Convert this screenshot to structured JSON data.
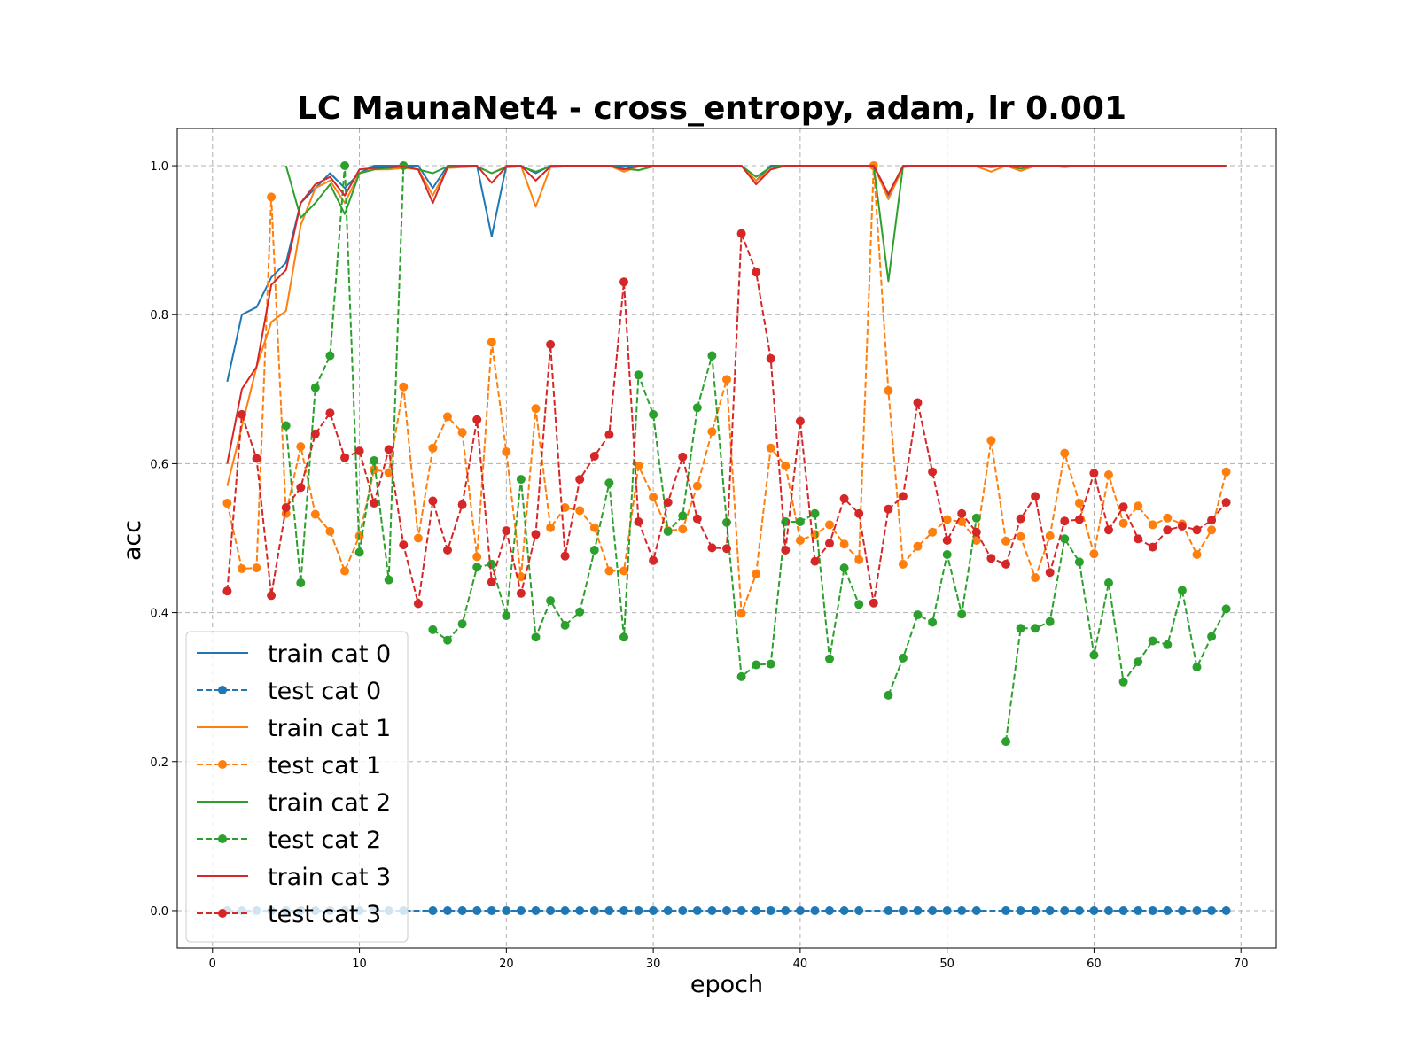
{
  "chart_data": {
    "type": "line",
    "title": "LC MaunaNet4 - cross_entropy, adam, lr 0.001",
    "xlabel": "epoch",
    "ylabel": "acc",
    "xlim": [
      -2.4,
      72.4
    ],
    "ylim": [
      -0.05,
      1.05
    ],
    "xticks": [
      0,
      10,
      20,
      30,
      40,
      50,
      60,
      70
    ],
    "yticks": [
      0.0,
      0.2,
      0.4,
      0.6,
      0.8,
      1.0
    ],
    "ytick_labels": [
      "0.0",
      "0.2",
      "0.4",
      "0.6",
      "0.8",
      "1.0"
    ],
    "grid": true,
    "legend_position": "lower-left",
    "series": [
      {
        "name": "train cat 0",
        "color": "#1f77b4",
        "style": "solid",
        "marker": false,
        "x": [
          1,
          2,
          3,
          4,
          5,
          6,
          7,
          8,
          9,
          10,
          11,
          12,
          13,
          14,
          15,
          16,
          17,
          18,
          19,
          20,
          21,
          22,
          23,
          24,
          25,
          26,
          27,
          28,
          29,
          30,
          31,
          32,
          33,
          34,
          35,
          36,
          37,
          38,
          39,
          40,
          41,
          42,
          43,
          44,
          45,
          46,
          47,
          48,
          49,
          50,
          51,
          52,
          53,
          54,
          55,
          56,
          57,
          58,
          59,
          60,
          61,
          62,
          63,
          64,
          65,
          66,
          67,
          68,
          69
        ],
        "values": [
          0.71,
          0.8,
          0.81,
          0.85,
          0.87,
          0.95,
          0.97,
          0.99,
          0.97,
          0.99,
          1.0,
          1.0,
          1.0,
          1.0,
          0.97,
          1.0,
          1.0,
          1.0,
          0.905,
          1.0,
          1.0,
          0.99,
          1.0,
          1.0,
          1.0,
          1.0,
          1.0,
          1.0,
          1.0,
          1.0,
          1.0,
          1.0,
          1.0,
          1.0,
          1.0,
          1.0,
          0.98,
          1.0,
          1.0,
          1.0,
          1.0,
          1.0,
          1.0,
          1.0,
          1.0,
          0.96,
          1.0,
          1.0,
          1.0,
          1.0,
          1.0,
          1.0,
          1.0,
          1.0,
          1.0,
          1.0,
          1.0,
          1.0,
          1.0,
          1.0,
          1.0,
          1.0,
          1.0,
          1.0,
          1.0,
          1.0,
          1.0,
          1.0,
          1.0
        ]
      },
      {
        "name": "test cat 0",
        "color": "#1f77b4",
        "style": "dashed",
        "marker": true,
        "x": [
          1,
          2,
          3,
          4,
          5,
          6,
          7,
          8,
          9,
          10,
          11,
          12,
          13,
          15,
          16,
          17,
          18,
          19,
          20,
          21,
          22,
          23,
          24,
          25,
          26,
          27,
          28,
          29,
          30,
          31,
          32,
          33,
          34,
          35,
          36,
          37,
          38,
          39,
          40,
          41,
          42,
          43,
          44,
          46,
          47,
          48,
          49,
          50,
          51,
          52,
          54,
          55,
          56,
          57,
          58,
          59,
          60,
          61,
          62,
          63,
          64,
          65,
          66,
          67,
          68,
          69
        ],
        "values": [
          0.0,
          0.0,
          0.0,
          0.0,
          0.0,
          0.0,
          0.0,
          0.0,
          0.0,
          0.0,
          0.0,
          0.0,
          0.0,
          0.0,
          0.0,
          0.0,
          0.0,
          0.0,
          0.0,
          0.0,
          0.0,
          0.0,
          0.0,
          0.0,
          0.0,
          0.0,
          0.0,
          0.0,
          0.0,
          0.0,
          0.0,
          0.0,
          0.0,
          0.0,
          0.0,
          0.0,
          0.0,
          0.0,
          0.0,
          0.0,
          0.0,
          0.0,
          0.0,
          0.0,
          0.0,
          0.0,
          0.0,
          0.0,
          0.0,
          0.0,
          0.0,
          0.0,
          0.0,
          0.0,
          0.0,
          0.0,
          0.0,
          0.0,
          0.0,
          0.0,
          0.0,
          0.0,
          0.0,
          0.0,
          0.0,
          0.0
        ]
      },
      {
        "name": "train cat 1",
        "color": "#ff7f0e",
        "style": "solid",
        "marker": false,
        "x": [
          1,
          2,
          3,
          4,
          5,
          6,
          7,
          8,
          9,
          10,
          11,
          12,
          13,
          14,
          15,
          16,
          17,
          18,
          19,
          20,
          21,
          22,
          23,
          24,
          25,
          26,
          27,
          28,
          29,
          30,
          31,
          32,
          33,
          34,
          35,
          36,
          37,
          38,
          39,
          40,
          41,
          42,
          43,
          44,
          45,
          46,
          47,
          48,
          49,
          50,
          51,
          52,
          53,
          54,
          55,
          56,
          57,
          58,
          59,
          60,
          61,
          62,
          63,
          64,
          65,
          66,
          67,
          68,
          69
        ],
        "values": [
          0.57,
          0.65,
          0.73,
          0.79,
          0.805,
          0.92,
          0.97,
          0.98,
          0.95,
          0.99,
          0.995,
          0.995,
          0.997,
          0.995,
          0.96,
          0.997,
          0.998,
          0.999,
          0.99,
          0.999,
          1.0,
          0.945,
          0.998,
          0.999,
          1.0,
          0.999,
          1.0,
          0.992,
          0.999,
          0.999,
          1.0,
          0.999,
          1.0,
          1.0,
          1.0,
          1.0,
          0.98,
          0.995,
          1.0,
          1.0,
          1.0,
          1.0,
          1.0,
          1.0,
          1.0,
          0.955,
          0.998,
          1.0,
          1.0,
          1.0,
          1.0,
          0.999,
          0.992,
          1.0,
          0.993,
          1.0,
          1.0,
          0.998,
          1.0,
          1.0,
          1.0,
          1.0,
          1.0,
          1.0,
          1.0,
          1.0,
          1.0,
          1.0,
          1.0
        ]
      },
      {
        "name": "test cat 1",
        "color": "#ff7f0e",
        "style": "dashed",
        "marker": true,
        "x": [
          1,
          2,
          3,
          4,
          5,
          6,
          7,
          8,
          9,
          10,
          11,
          12,
          13,
          14,
          15,
          16,
          17,
          18,
          19,
          20,
          21,
          22,
          23,
          24,
          25,
          26,
          27,
          28,
          29,
          30,
          31,
          32,
          33,
          34,
          35,
          36,
          37,
          38,
          39,
          40,
          41,
          42,
          43,
          44,
          45,
          46,
          47,
          48,
          49,
          50,
          51,
          52,
          53,
          54,
          55,
          56,
          57,
          58,
          59,
          60,
          61,
          62,
          63,
          64,
          65,
          66,
          67,
          68,
          69
        ],
        "values": [
          0.547,
          0.459,
          0.46,
          0.958,
          0.533,
          0.623,
          0.532,
          0.509,
          0.456,
          0.503,
          0.592,
          0.588,
          0.703,
          0.5,
          0.621,
          0.663,
          0.642,
          0.475,
          0.763,
          0.616,
          0.448,
          0.674,
          0.514,
          0.541,
          0.537,
          0.514,
          0.456,
          0.456,
          0.597,
          0.555,
          0.51,
          0.512,
          0.57,
          0.643,
          0.713,
          0.399,
          0.452,
          0.621,
          0.597,
          0.497,
          0.505,
          0.518,
          0.492,
          0.471,
          1.0,
          0.698,
          0.465,
          0.489,
          0.508,
          0.525,
          0.522,
          0.497,
          0.631,
          0.496,
          0.502,
          0.447,
          0.503,
          0.614,
          0.547,
          0.479,
          0.585,
          0.52,
          0.543,
          0.518,
          0.527,
          0.519,
          0.478,
          0.511,
          0.589
        ]
      },
      {
        "name": "train cat 2",
        "color": "#2ca02c",
        "style": "solid",
        "marker": false,
        "x": [
          5,
          6,
          7,
          8,
          9,
          10,
          11,
          12,
          13,
          14,
          15,
          16,
          17,
          18,
          19,
          20,
          21,
          22,
          23,
          24,
          25,
          26,
          27,
          28,
          29,
          30,
          31,
          32,
          33,
          34,
          35,
          36,
          37,
          38,
          39,
          40,
          41,
          42,
          43,
          44,
          45,
          46,
          47,
          48,
          49,
          50,
          51,
          52,
          53,
          54,
          55,
          56,
          57,
          58,
          59,
          60,
          61,
          62,
          63,
          64,
          65,
          66,
          67,
          68,
          69
        ],
        "values": [
          1.0,
          0.93,
          0.95,
          0.975,
          0.935,
          0.99,
          0.995,
          0.997,
          0.999,
          0.995,
          0.99,
          0.999,
          0.999,
          0.999,
          0.99,
          0.998,
          0.999,
          0.992,
          0.999,
          0.999,
          1.0,
          0.999,
          1.0,
          0.996,
          0.994,
          0.999,
          1.0,
          0.999,
          1.0,
          1.0,
          1.0,
          1.0,
          0.985,
          0.998,
          1.0,
          1.0,
          1.0,
          1.0,
          1.0,
          1.0,
          1.0,
          0.845,
          0.999,
          1.0,
          1.0,
          1.0,
          1.0,
          1.0,
          0.998,
          1.0,
          0.996,
          1.0,
          1.0,
          0.999,
          1.0,
          1.0,
          1.0,
          1.0,
          1.0,
          1.0,
          1.0,
          1.0,
          1.0,
          1.0,
          1.0
        ]
      },
      {
        "name": "test cat 2",
        "color": "#2ca02c",
        "style": "dashed",
        "marker": true,
        "segments": [
          {
            "x": [
              5,
              6,
              7,
              8,
              9,
              10,
              11,
              12,
              13
            ],
            "values": [
              0.651,
              0.44,
              0.702,
              0.745,
              1.0,
              0.481,
              0.604,
              0.444,
              1.0
            ]
          },
          {
            "x": [
              15,
              16,
              17,
              18,
              19,
              20,
              21,
              22,
              23,
              24,
              25,
              26,
              27,
              28,
              29,
              30,
              31,
              32,
              33,
              34,
              35,
              36,
              37,
              38,
              39,
              40,
              41,
              42,
              43,
              44
            ],
            "values": [
              0.377,
              0.363,
              0.385,
              0.461,
              0.465,
              0.396,
              0.579,
              0.367,
              0.416,
              0.383,
              0.401,
              0.484,
              0.574,
              0.367,
              0.719,
              0.666,
              0.509,
              0.53,
              0.675,
              0.745,
              0.521,
              0.314,
              0.33,
              0.331,
              0.522,
              0.522,
              0.533,
              0.338,
              0.46,
              0.411
            ]
          },
          {
            "x": [
              46,
              47,
              48,
              49,
              50,
              51,
              52
            ],
            "values": [
              0.289,
              0.339,
              0.397,
              0.387,
              0.478,
              0.398,
              0.527
            ]
          },
          {
            "x": [
              54,
              55,
              56,
              57,
              58,
              59,
              60,
              61,
              62,
              63,
              64,
              65,
              66,
              67,
              68,
              69
            ],
            "values": [
              0.227,
              0.379,
              0.379,
              0.388,
              0.499,
              0.468,
              0.343,
              0.44,
              0.307,
              0.334,
              0.362,
              0.357,
              0.43,
              0.327,
              0.368,
              0.405
            ]
          }
        ]
      },
      {
        "name": "train cat 3",
        "color": "#d62728",
        "style": "solid",
        "marker": false,
        "x": [
          1,
          2,
          3,
          4,
          5,
          6,
          7,
          8,
          9,
          10,
          11,
          12,
          13,
          14,
          15,
          16,
          17,
          18,
          19,
          20,
          21,
          22,
          23,
          24,
          25,
          26,
          27,
          28,
          29,
          30,
          31,
          32,
          33,
          34,
          35,
          36,
          37,
          38,
          39,
          40,
          41,
          42,
          43,
          44,
          45,
          46,
          47,
          48,
          49,
          50,
          51,
          52,
          53,
          54,
          55,
          56,
          57,
          58,
          59,
          60,
          61,
          62,
          63,
          64,
          65,
          66,
          67,
          68,
          69
        ],
        "values": [
          0.6,
          0.7,
          0.73,
          0.84,
          0.86,
          0.95,
          0.975,
          0.985,
          0.96,
          0.995,
          0.997,
          0.998,
          0.999,
          0.995,
          0.95,
          0.998,
          0.999,
          1.0,
          0.977,
          0.999,
          1.0,
          0.98,
          0.999,
          1.0,
          1.0,
          1.0,
          1.0,
          0.995,
          1.0,
          1.0,
          1.0,
          1.0,
          1.0,
          1.0,
          1.0,
          1.0,
          0.975,
          0.995,
          1.0,
          1.0,
          1.0,
          1.0,
          1.0,
          1.0,
          1.0,
          0.962,
          0.999,
          1.0,
          1.0,
          1.0,
          1.0,
          1.0,
          1.0,
          1.0,
          1.0,
          1.0,
          1.0,
          1.0,
          1.0,
          1.0,
          1.0,
          1.0,
          1.0,
          1.0,
          1.0,
          1.0,
          1.0,
          1.0,
          1.0
        ]
      },
      {
        "name": "test cat 3",
        "color": "#d62728",
        "style": "dashed",
        "marker": true,
        "x": [
          1,
          2,
          3,
          4,
          5,
          6,
          7,
          8,
          9,
          10,
          11,
          12,
          13,
          14,
          15,
          16,
          17,
          18,
          19,
          20,
          21,
          22,
          23,
          24,
          25,
          26,
          27,
          28,
          29,
          30,
          31,
          32,
          33,
          34,
          35,
          36,
          37,
          38,
          39,
          40,
          41,
          42,
          43,
          44,
          45,
          46,
          47,
          48,
          49,
          50,
          51,
          52,
          53,
          54,
          55,
          56,
          57,
          58,
          59,
          60,
          61,
          62,
          63,
          64,
          65,
          66,
          67,
          68,
          69
        ],
        "values": [
          0.429,
          0.666,
          0.607,
          0.423,
          0.541,
          0.568,
          0.64,
          0.668,
          0.608,
          0.617,
          0.547,
          0.619,
          0.491,
          0.412,
          0.55,
          0.484,
          0.545,
          0.659,
          0.441,
          0.51,
          0.426,
          0.505,
          0.76,
          0.476,
          0.579,
          0.61,
          0.639,
          0.844,
          0.522,
          0.47,
          0.548,
          0.609,
          0.526,
          0.487,
          0.486,
          0.909,
          0.857,
          0.741,
          0.484,
          0.657,
          0.469,
          0.493,
          0.553,
          0.533,
          0.413,
          0.539,
          0.556,
          0.682,
          0.589,
          0.497,
          0.533,
          0.508,
          0.473,
          0.465,
          0.526,
          0.556,
          0.454,
          0.523,
          0.525,
          0.587,
          0.511,
          0.542,
          0.499,
          0.488,
          0.511,
          0.516,
          0.511,
          0.524,
          0.548
        ]
      }
    ]
  }
}
